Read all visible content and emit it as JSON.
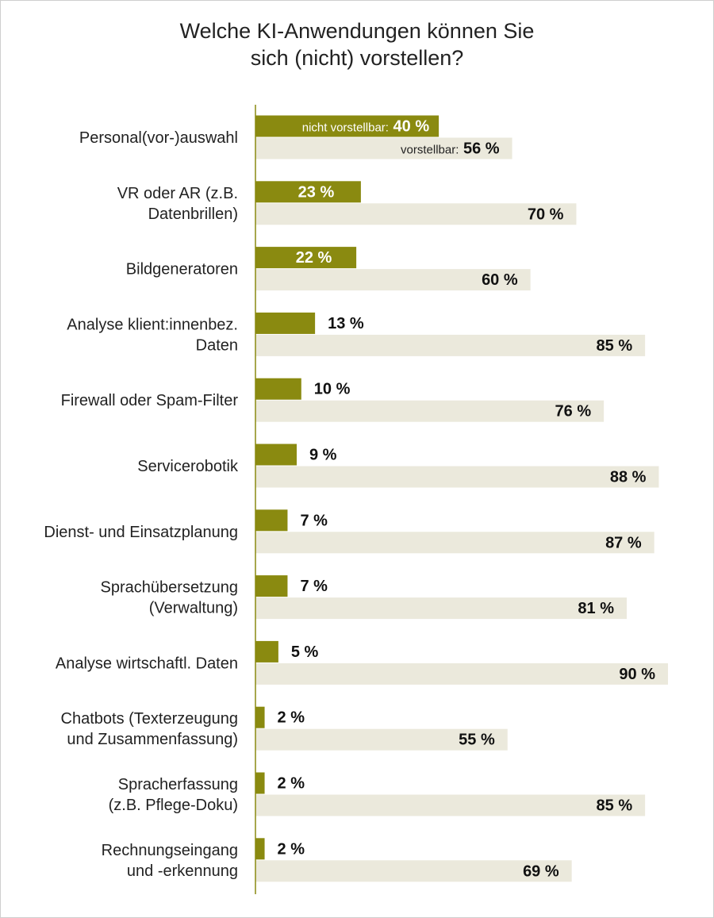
{
  "chart_data": {
    "type": "bar",
    "orientation": "horizontal",
    "title_lines": [
      "Welche KI-Anwendungen können Sie",
      "sich (nicht) vorstellen?"
    ],
    "categories": [
      [
        "Personal(vor-)auswahl"
      ],
      [
        "VR oder AR (z.B.",
        "Datenbrillen)"
      ],
      [
        "Bildgeneratoren"
      ],
      [
        "Analyse klient:innenbez.",
        "Daten"
      ],
      [
        "Firewall oder Spam-Filter"
      ],
      [
        "Servicerobotik"
      ],
      [
        "Dienst- und Einsatzplanung"
      ],
      [
        "Sprachübersetzung",
        "(Verwaltung)"
      ],
      [
        "Analyse wirtschaftl. Daten"
      ],
      [
        "Chatbots (Texterzeugung",
        "und Zusammenfassung)"
      ],
      [
        "Spracherfassung",
        "(z.B. Pflege-Doku)"
      ],
      [
        "Rechnungseingang",
        "und -erkennung"
      ]
    ],
    "series": [
      {
        "name": "nicht vorstellbar",
        "color": "#8a8a10",
        "values": [
          40,
          23,
          22,
          13,
          10,
          9,
          7,
          7,
          5,
          2,
          2,
          2
        ]
      },
      {
        "name": "vorstellbar",
        "color": "#ebe9dc",
        "values": [
          56,
          70,
          60,
          85,
          76,
          88,
          87,
          81,
          90,
          55,
          85,
          69
        ]
      }
    ],
    "value_suffix": " %",
    "xlim": [
      0,
      90
    ],
    "grid": false,
    "legend": "inline labels on first category"
  }
}
